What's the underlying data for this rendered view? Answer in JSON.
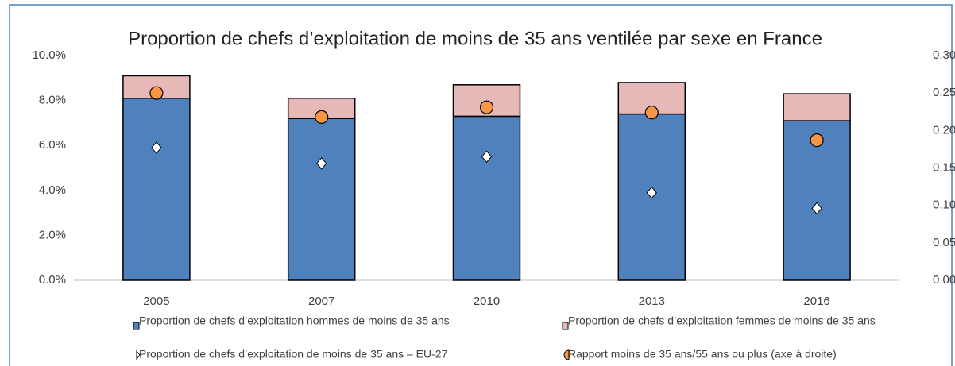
{
  "chart_data": {
    "type": "bar",
    "stacked": true,
    "title": "Proportion de chefs d’exploitation de moins de 35 ans ventilée par sexe en France",
    "categories": [
      "2005",
      "2007",
      "2010",
      "2013",
      "2016"
    ],
    "series": [
      {
        "name": "Proportion de chefs d’exploitation hommes de moins de 35 ans",
        "type": "bar",
        "color": "#4f81bd",
        "values": [
          8.1,
          7.2,
          7.3,
          7.4,
          7.1
        ]
      },
      {
        "name": "Proportion de chefs d’exploitation femmes de moins de 35 ans",
        "type": "bar",
        "color": "#e6b9b8",
        "values": [
          1.0,
          0.9,
          1.4,
          1.4,
          1.2
        ]
      },
      {
        "name": "Proportion de chefs d’exploitation de moins de 35 ans – EU-27",
        "type": "scatter",
        "marker": "diamond",
        "color": "#ffffff",
        "values": [
          5.9,
          5.2,
          5.5,
          3.9,
          3.2
        ]
      },
      {
        "name": "Rapport moins de 35 ans/55 ans ou plus (axe à droite)",
        "type": "scatter",
        "marker": "circle",
        "color": "#f79646",
        "axis": "y2",
        "values": [
          0.25,
          0.218,
          0.231,
          0.224,
          0.187
        ]
      }
    ],
    "ylim": [
      0,
      10
    ],
    "yticks": [
      {
        "value": 0,
        "label": "0.0%"
      },
      {
        "value": 2,
        "label": "2.0%"
      },
      {
        "value": 4,
        "label": "4.0%"
      },
      {
        "value": 6,
        "label": "6.0%"
      },
      {
        "value": 8,
        "label": "8.0%"
      },
      {
        "value": 10,
        "label": "10.0%"
      }
    ],
    "y2lim": [
      0,
      0.3
    ],
    "y2ticks": [
      {
        "value": 0,
        "label": "0.00"
      },
      {
        "value": 0.05,
        "label": "0.05"
      },
      {
        "value": 0.1,
        "label": "0.10"
      },
      {
        "value": 0.15,
        "label": "0.15"
      },
      {
        "value": 0.2,
        "label": "0.20"
      },
      {
        "value": 0.25,
        "label": "0.25"
      },
      {
        "value": 0.3,
        "label": "0.30"
      }
    ]
  }
}
